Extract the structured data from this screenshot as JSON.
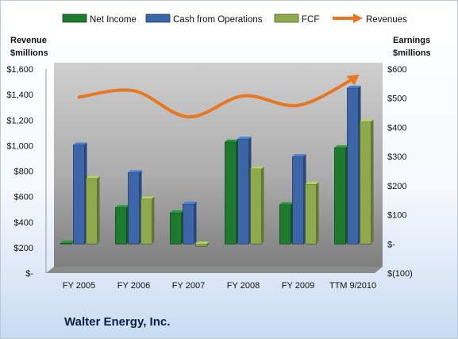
{
  "company_name": "Walter Energy, Inc.",
  "chart_data": {
    "type": "bar",
    "categories": [
      "FY 2005",
      "FY 2006",
      "FY 2007",
      "FY 2008",
      "FY 2009",
      "TTM 9/2010"
    ],
    "left_axis": {
      "label_line1": "Revenue",
      "label_line2": "$millions",
      "range": [
        0,
        1600
      ],
      "ticks": [
        {
          "value": 0,
          "label": "$-"
        },
        {
          "value": 200,
          "label": "$200"
        },
        {
          "value": 400,
          "label": "$400"
        },
        {
          "value": 600,
          "label": "$600"
        },
        {
          "value": 800,
          "label": "$800"
        },
        {
          "value": 1000,
          "label": "$1,000"
        },
        {
          "value": 1200,
          "label": "$1,200"
        },
        {
          "value": 1400,
          "label": "$1,400"
        },
        {
          "value": 1600,
          "label": "$1,600"
        }
      ]
    },
    "right_axis": {
      "label_line1": "Earnings",
      "label_line2": "$millions",
      "range": [
        -100,
        600
      ],
      "ticks": [
        {
          "value": -100,
          "label": "$(100)"
        },
        {
          "value": 0,
          "label": "$-"
        },
        {
          "value": 100,
          "label": "$100"
        },
        {
          "value": 200,
          "label": "$200"
        },
        {
          "value": 300,
          "label": "$300"
        },
        {
          "value": 400,
          "label": "$400"
        },
        {
          "value": 500,
          "label": "$500"
        },
        {
          "value": 600,
          "label": "$600"
        }
      ]
    },
    "series": [
      {
        "name": "Net Income",
        "axis": "right",
        "kind": "bar",
        "color": "#1e7a2e",
        "values": [
          3,
          125,
          107,
          350,
          135,
          330
        ]
      },
      {
        "name": "Cash from Operations",
        "axis": "right",
        "kind": "bar",
        "color": "#3d66a8",
        "values": [
          340,
          245,
          137,
          360,
          300,
          535
        ]
      },
      {
        "name": "FCF",
        "axis": "right",
        "kind": "bar",
        "color": "#8faa4e",
        "values": [
          225,
          155,
          -8,
          258,
          205,
          420
        ]
      },
      {
        "name": "Revenues",
        "axis": "left",
        "kind": "line",
        "color": "#e87722",
        "values": [
          1380,
          1430,
          1225,
          1390,
          1315,
          1520
        ]
      }
    ],
    "legend_position": "top",
    "grid": false
  }
}
